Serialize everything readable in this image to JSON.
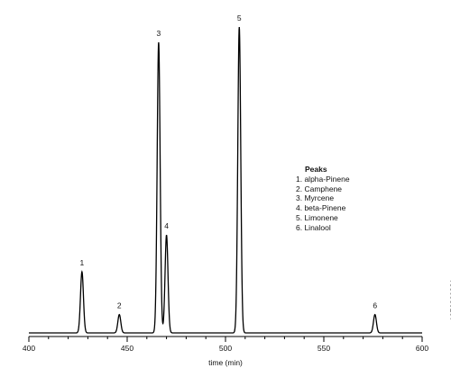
{
  "chart_data": {
    "type": "line",
    "xlabel": "time (min)",
    "ylabel": "",
    "xlim": [
      400,
      600
    ],
    "ylim": [
      0,
      100
    ],
    "x_ticks": [
      400,
      450,
      500,
      550,
      600
    ],
    "grid": false,
    "baseline": 0,
    "peaks": [
      {
        "label": "1",
        "x": 427,
        "height": 20
      },
      {
        "label": "2",
        "x": 446,
        "height": 6
      },
      {
        "label": "3",
        "x": 466,
        "height": 95
      },
      {
        "label": "4",
        "x": 470,
        "height": 32
      },
      {
        "label": "5",
        "x": 507,
        "height": 100
      },
      {
        "label": "6",
        "x": 576,
        "height": 6
      }
    ],
    "legend": {
      "title": "Peaks",
      "position": "right",
      "entries": [
        "1. alpha-Pinene",
        "2. Camphene",
        "3. Myrcene",
        "4. beta-Pinene",
        "5. Limonene",
        "6. Linalool"
      ]
    }
  },
  "watermark": {
    "id_text": "1976369881"
  }
}
